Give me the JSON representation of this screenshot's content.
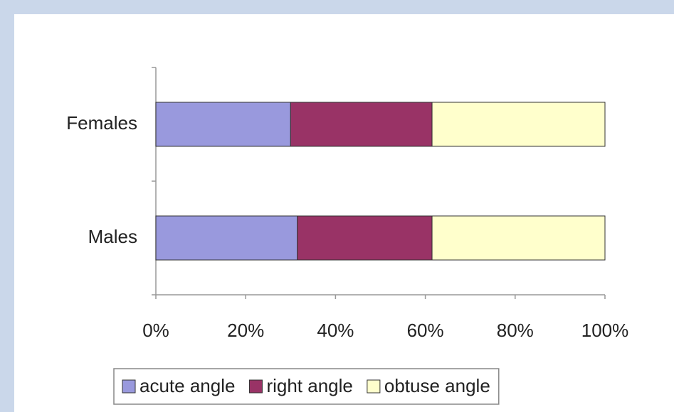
{
  "chart_data": {
    "type": "stacked_bar_horizontal",
    "categories": [
      "Females",
      "Males"
    ],
    "series": [
      {
        "name": "acute angle",
        "color": "#9999dd",
        "values": [
          30,
          31.5
        ]
      },
      {
        "name": "right angle",
        "color": "#993366",
        "values": [
          31.5,
          30
        ]
      },
      {
        "name": "obtuse angle",
        "color": "#ffffcc",
        "values": [
          38.5,
          38.5
        ]
      }
    ],
    "xlim": [
      0,
      100
    ],
    "xticks": [
      {
        "value": 0,
        "label": "0%"
      },
      {
        "value": 20,
        "label": "20%"
      },
      {
        "value": 40,
        "label": "40%"
      },
      {
        "value": 60,
        "label": "60%"
      },
      {
        "value": 80,
        "label": "80%"
      },
      {
        "value": 100,
        "label": "100%"
      }
    ],
    "legend": "bottom"
  }
}
